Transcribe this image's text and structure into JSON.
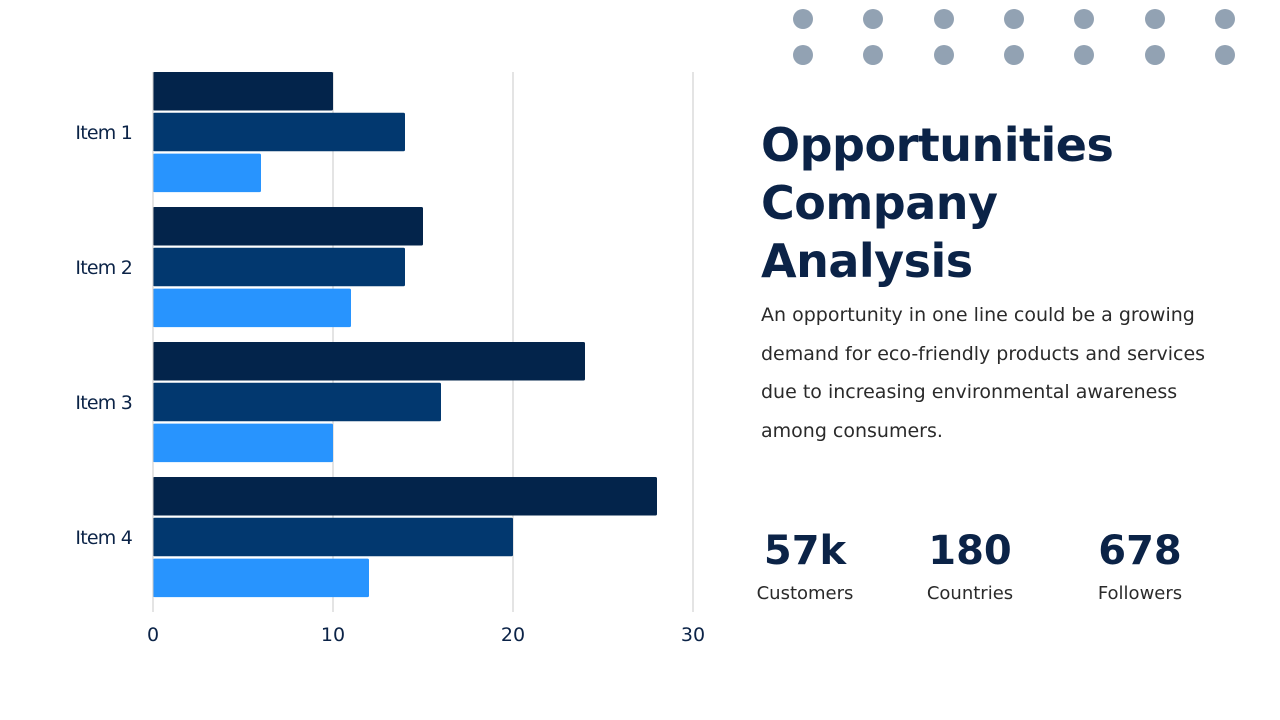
{
  "chart_data": {
    "type": "bar",
    "orientation": "horizontal",
    "categories": [
      "Item 1",
      "Item 2",
      "Item 3",
      "Item 4"
    ],
    "series": [
      {
        "values": [
          10,
          15,
          24,
          28
        ]
      },
      {
        "values": [
          14,
          14,
          16,
          20
        ]
      },
      {
        "values": [
          6,
          11,
          10,
          12
        ]
      }
    ],
    "x_ticks": [
      "0",
      "10",
      "20",
      "30"
    ],
    "xlim": [
      0,
      30
    ],
    "grid": true,
    "legend": "none"
  },
  "colors": {
    "series": [
      "#03244b",
      "#02386f",
      "#2894fe"
    ],
    "grid": "#c8c8c8",
    "dots": "#92a2b3",
    "title": "#0b2347"
  },
  "title_lines": [
    "Opportunities",
    "Company",
    "Analysis"
  ],
  "description": "An opportunity in one line could be a growing demand for eco-friendly products and services due to increasing environmental awareness among consumers.",
  "stats": [
    {
      "value": "57k",
      "label": "Customers"
    },
    {
      "value": "180",
      "label": "Countries"
    },
    {
      "value": "678",
      "label": "Followers"
    }
  ]
}
